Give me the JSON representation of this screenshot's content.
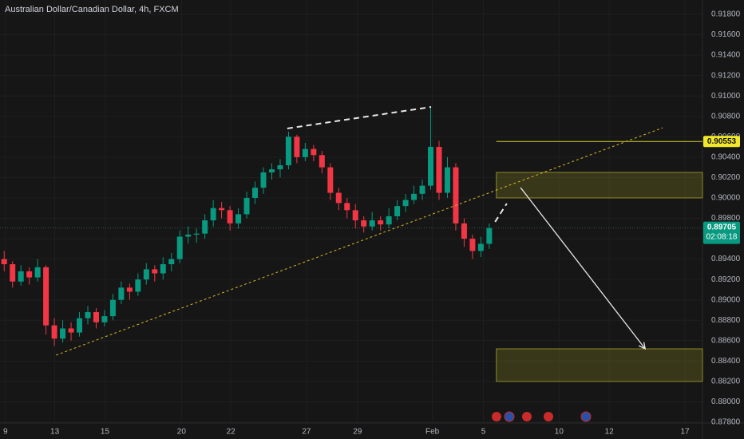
{
  "chart_data": {
    "type": "candlestick",
    "title": "Australian Dollar/Canadian Dollar, 4h, FXCM",
    "up_color": "#089981",
    "down_color": "#f23645",
    "grid": true,
    "xlim": [
      0,
      168
    ],
    "ylim": [
      0.878,
      0.918
    ],
    "xticks": [
      {
        "value": 1.3,
        "label": "9"
      },
      {
        "value": 13.1,
        "label": "13"
      },
      {
        "value": 25.1,
        "label": "15"
      },
      {
        "value": 43.4,
        "label": "20"
      },
      {
        "value": 55.2,
        "label": "22"
      },
      {
        "value": 73.3,
        "label": "27"
      },
      {
        "value": 85.5,
        "label": "29"
      },
      {
        "value": 103.4,
        "label": "Feb"
      },
      {
        "value": 115.6,
        "label": "5"
      },
      {
        "value": 133.7,
        "label": "10"
      },
      {
        "value": 145.7,
        "label": "12"
      },
      {
        "value": 163.8,
        "label": "17"
      }
    ],
    "yticks": [
      {
        "value": 0.878,
        "label": "0.87800"
      },
      {
        "value": 0.88,
        "label": "0.88000"
      },
      {
        "value": 0.882,
        "label": "0.88200"
      },
      {
        "value": 0.884,
        "label": "0.88400"
      },
      {
        "value": 0.886,
        "label": "0.88600"
      },
      {
        "value": 0.888,
        "label": "0.88800"
      },
      {
        "value": 0.89,
        "label": "0.89000"
      },
      {
        "value": 0.892,
        "label": "0.89200"
      },
      {
        "value": 0.894,
        "label": "0.89400"
      },
      {
        "value": 0.896,
        "label": "0.89600"
      },
      {
        "value": 0.898,
        "label": "0.89800"
      },
      {
        "value": 0.9,
        "label": "0.90000"
      },
      {
        "value": 0.902,
        "label": "0.90200"
      },
      {
        "value": 0.904,
        "label": "0.90400"
      },
      {
        "value": 0.906,
        "label": "0.90600"
      },
      {
        "value": 0.908,
        "label": "0.90800"
      },
      {
        "value": 0.91,
        "label": "0.91000"
      },
      {
        "value": 0.912,
        "label": "0.91200"
      },
      {
        "value": 0.914,
        "label": "0.91400"
      },
      {
        "value": 0.916,
        "label": "0.91600"
      },
      {
        "value": 0.918,
        "label": "0.91800"
      }
    ],
    "x": [
      1,
      3,
      5,
      7,
      9,
      11,
      13,
      15,
      17,
      19,
      21,
      23,
      25,
      27,
      29,
      31,
      33,
      35,
      37,
      39,
      41,
      43,
      45,
      47,
      49,
      51,
      53,
      55,
      57,
      59,
      61,
      63,
      65,
      67,
      69,
      71,
      73,
      75,
      77,
      79,
      81,
      83,
      85,
      87,
      89,
      91,
      93,
      95,
      97,
      99,
      101,
      103,
      105,
      107,
      109,
      111,
      113,
      115,
      117
    ],
    "ohlc": [
      [
        0.894,
        0.8948,
        0.8928,
        0.8935
      ],
      [
        0.8935,
        0.8938,
        0.8912,
        0.8918
      ],
      [
        0.8918,
        0.8934,
        0.8914,
        0.8928
      ],
      [
        0.8928,
        0.8932,
        0.8915,
        0.8922
      ],
      [
        0.8922,
        0.894,
        0.8918,
        0.8932
      ],
      [
        0.8932,
        0.8934,
        0.8866,
        0.8875
      ],
      [
        0.8875,
        0.8882,
        0.8855,
        0.8862
      ],
      [
        0.8862,
        0.888,
        0.8858,
        0.8872
      ],
      [
        0.8872,
        0.8878,
        0.886,
        0.8868
      ],
      [
        0.8868,
        0.8888,
        0.8864,
        0.8882
      ],
      [
        0.8882,
        0.8894,
        0.8876,
        0.8888
      ],
      [
        0.8888,
        0.8892,
        0.8872,
        0.8878
      ],
      [
        0.8878,
        0.889,
        0.8874,
        0.8884
      ],
      [
        0.8884,
        0.8906,
        0.888,
        0.89
      ],
      [
        0.89,
        0.8918,
        0.8896,
        0.8912
      ],
      [
        0.8912,
        0.8916,
        0.89,
        0.8908
      ],
      [
        0.8908,
        0.8926,
        0.8904,
        0.892
      ],
      [
        0.892,
        0.8936,
        0.8915,
        0.893
      ],
      [
        0.893,
        0.8934,
        0.8918,
        0.8926
      ],
      [
        0.8926,
        0.8942,
        0.892,
        0.8935
      ],
      [
        0.8935,
        0.8946,
        0.8928,
        0.894
      ],
      [
        0.894,
        0.8968,
        0.8936,
        0.8962
      ],
      [
        0.8962,
        0.8972,
        0.8955,
        0.8964
      ],
      [
        0.8964,
        0.897,
        0.8956,
        0.8965
      ],
      [
        0.8965,
        0.8984,
        0.896,
        0.8978
      ],
      [
        0.8978,
        0.8998,
        0.8972,
        0.899
      ],
      [
        0.899,
        0.8996,
        0.898,
        0.8988
      ],
      [
        0.8988,
        0.8992,
        0.8968,
        0.8975
      ],
      [
        0.8975,
        0.899,
        0.897,
        0.8984
      ],
      [
        0.8984,
        0.9006,
        0.898,
        0.9
      ],
      [
        0.9,
        0.9016,
        0.8994,
        0.901
      ],
      [
        0.901,
        0.903,
        0.9004,
        0.9025
      ],
      [
        0.9025,
        0.9034,
        0.9018,
        0.9028
      ],
      [
        0.9028,
        0.9038,
        0.902,
        0.9032
      ],
      [
        0.9032,
        0.9065,
        0.9028,
        0.906
      ],
      [
        0.906,
        0.9062,
        0.9034,
        0.904
      ],
      [
        0.904,
        0.9054,
        0.9036,
        0.9048
      ],
      [
        0.9048,
        0.9052,
        0.9036,
        0.9042
      ],
      [
        0.9042,
        0.9046,
        0.9024,
        0.903
      ],
      [
        0.903,
        0.9034,
        0.8998,
        0.9005
      ],
      [
        0.9005,
        0.901,
        0.8988,
        0.8995
      ],
      [
        0.8995,
        0.9,
        0.898,
        0.8988
      ],
      [
        0.8988,
        0.8994,
        0.897,
        0.8978
      ],
      [
        0.8978,
        0.8982,
        0.8966,
        0.8972
      ],
      [
        0.8972,
        0.8986,
        0.8968,
        0.8978
      ],
      [
        0.8978,
        0.8982,
        0.8968,
        0.8974
      ],
      [
        0.8974,
        0.899,
        0.897,
        0.8982
      ],
      [
        0.8982,
        0.8998,
        0.8978,
        0.8992
      ],
      [
        0.8992,
        0.9004,
        0.8986,
        0.8998
      ],
      [
        0.8998,
        0.9012,
        0.8994,
        0.9004
      ],
      [
        0.9004,
        0.9018,
        0.8998,
        0.9012
      ],
      [
        0.9012,
        0.909,
        0.9008,
        0.905
      ],
      [
        0.905,
        0.9056,
        0.8998,
        0.9005
      ],
      [
        0.9005,
        0.904,
        0.9,
        0.903
      ],
      [
        0.903,
        0.9034,
        0.8968,
        0.8975
      ],
      [
        0.8975,
        0.898,
        0.8952,
        0.896
      ],
      [
        0.896,
        0.8964,
        0.894,
        0.8948
      ],
      [
        0.8948,
        0.8962,
        0.8942,
        0.8955
      ],
      [
        0.8955,
        0.8975,
        0.895,
        0.89705
      ]
    ],
    "last_price": {
      "value": 0.89705,
      "label": "0.89705"
    },
    "countdown": "02:08:18",
    "marked_level": {
      "value": 0.90553,
      "label": "0.90553",
      "x": [
        118.7,
        168
      ],
      "color": "#d4cf2b"
    },
    "zones": [
      {
        "x": [
          118.7,
          168
        ],
        "y": [
          0.9,
          0.9025
        ]
      },
      {
        "x": [
          118.7,
          168
        ],
        "y": [
          0.882,
          0.8852
        ]
      }
    ],
    "lines": [
      {
        "x": [
          13.4,
          158.5
        ],
        "y": [
          0.88458,
          0.90688
        ],
        "color": "#d4b82b",
        "style": "dotted"
      },
      {
        "x": [
          68.7,
          103.1
        ],
        "y": [
          0.90681,
          0.90892
        ],
        "color": "#e8e8e8",
        "style": "dashed"
      },
      {
        "x": [
          118.4,
          121.2
        ],
        "y": [
          0.89765,
          0.89945
        ],
        "color": "#e8e8e8",
        "style": "dashed"
      },
      {
        "x": [
          124.5,
          154.3
        ],
        "y": [
          0.90101,
          0.8852
        ],
        "color": "#e8e8e8",
        "style": "arrow"
      }
    ]
  }
}
